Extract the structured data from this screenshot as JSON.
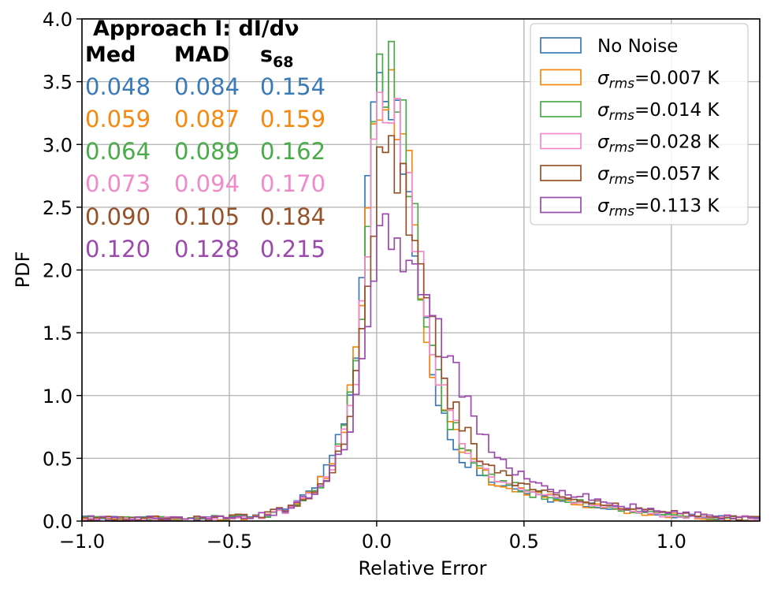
{
  "chart_data": {
    "type": "histogram-step",
    "xlabel": "Relative Error",
    "ylabel": "PDF",
    "xlim": [
      -1.0,
      1.3
    ],
    "ylim": [
      0.0,
      4.0
    ],
    "grid": true,
    "legend_position": "top-right",
    "xticks": [
      "−1.0",
      "−0.5",
      "0.0",
      "0.5",
      "1.0"
    ],
    "xtick_values": [
      -1.0,
      -0.5,
      0.0,
      0.5,
      1.0
    ],
    "yticks": [
      "0.0",
      "0.5",
      "1.0",
      "1.5",
      "2.0",
      "2.5",
      "3.0",
      "3.5",
      "4.0"
    ],
    "ytick_values": [
      0.0,
      0.5,
      1.0,
      1.5,
      2.0,
      2.5,
      3.0,
      3.5,
      4.0
    ],
    "annotation_title": "Approach I: dI/dν",
    "stat_headers": [
      "Med",
      "MAD",
      "s68"
    ],
    "series": [
      {
        "name": "No Noise",
        "color": "#3a7ab8",
        "stats": [
          "0.048",
          "0.084",
          "0.154"
        ],
        "profile": [
          [
            -1.0,
            0.02
          ],
          [
            -0.6,
            0.02
          ],
          [
            -0.4,
            0.03
          ],
          [
            -0.3,
            0.1
          ],
          [
            -0.2,
            0.3
          ],
          [
            -0.15,
            0.5
          ],
          [
            -0.1,
            0.9
          ],
          [
            -0.06,
            1.6
          ],
          [
            -0.03,
            2.6
          ],
          [
            -0.01,
            3.4
          ],
          [
            0.01,
            3.8
          ],
          [
            0.03,
            3.75
          ],
          [
            0.06,
            3.3
          ],
          [
            0.09,
            3.0
          ],
          [
            0.12,
            2.4
          ],
          [
            0.15,
            1.8
          ],
          [
            0.18,
            1.3
          ],
          [
            0.21,
            0.95
          ],
          [
            0.25,
            0.7
          ],
          [
            0.3,
            0.5
          ],
          [
            0.35,
            0.38
          ],
          [
            0.4,
            0.3
          ],
          [
            0.5,
            0.22
          ],
          [
            0.6,
            0.17
          ],
          [
            0.7,
            0.14
          ],
          [
            0.8,
            0.1
          ],
          [
            0.9,
            0.07
          ],
          [
            1.0,
            0.05
          ],
          [
            1.1,
            0.03
          ],
          [
            1.2,
            0.02
          ],
          [
            1.3,
            0.02
          ]
        ]
      },
      {
        "name": "σrms=0.007 K",
        "color": "#f5890f",
        "stats": [
          "0.059",
          "0.087",
          "0.159"
        ],
        "profile": [
          [
            -1.0,
            0.02
          ],
          [
            -0.6,
            0.02
          ],
          [
            -0.4,
            0.03
          ],
          [
            -0.3,
            0.09
          ],
          [
            -0.2,
            0.28
          ],
          [
            -0.15,
            0.45
          ],
          [
            -0.1,
            0.8
          ],
          [
            -0.06,
            1.5
          ],
          [
            -0.03,
            2.4
          ],
          [
            -0.01,
            3.1
          ],
          [
            0.01,
            3.5
          ],
          [
            0.03,
            3.6
          ],
          [
            0.06,
            3.5
          ],
          [
            0.09,
            3.1
          ],
          [
            0.12,
            2.5
          ],
          [
            0.15,
            1.9
          ],
          [
            0.18,
            1.4
          ],
          [
            0.21,
            1.05
          ],
          [
            0.25,
            0.75
          ],
          [
            0.3,
            0.55
          ],
          [
            0.35,
            0.4
          ],
          [
            0.4,
            0.32
          ],
          [
            0.5,
            0.23
          ],
          [
            0.6,
            0.18
          ],
          [
            0.7,
            0.14
          ],
          [
            0.8,
            0.1
          ],
          [
            0.9,
            0.07
          ],
          [
            1.0,
            0.05
          ],
          [
            1.1,
            0.03
          ],
          [
            1.2,
            0.02
          ],
          [
            1.3,
            0.02
          ]
        ]
      },
      {
        "name": "σrms=0.014 K",
        "color": "#4bab4b",
        "stats": [
          "0.064",
          "0.089",
          "0.162"
        ],
        "profile": [
          [
            -1.0,
            0.02
          ],
          [
            -0.6,
            0.02
          ],
          [
            -0.4,
            0.03
          ],
          [
            -0.3,
            0.09
          ],
          [
            -0.2,
            0.27
          ],
          [
            -0.15,
            0.45
          ],
          [
            -0.1,
            0.8
          ],
          [
            -0.06,
            1.45
          ],
          [
            -0.03,
            2.3
          ],
          [
            -0.01,
            3.0
          ],
          [
            0.01,
            3.4
          ],
          [
            0.03,
            3.55
          ],
          [
            0.06,
            3.45
          ],
          [
            0.09,
            3.1
          ],
          [
            0.12,
            2.5
          ],
          [
            0.15,
            1.95
          ],
          [
            0.18,
            1.45
          ],
          [
            0.21,
            1.1
          ],
          [
            0.25,
            0.8
          ],
          [
            0.3,
            0.58
          ],
          [
            0.35,
            0.42
          ],
          [
            0.4,
            0.33
          ],
          [
            0.5,
            0.24
          ],
          [
            0.6,
            0.18
          ],
          [
            0.7,
            0.14
          ],
          [
            0.8,
            0.1
          ],
          [
            0.9,
            0.07
          ],
          [
            1.0,
            0.05
          ],
          [
            1.1,
            0.03
          ],
          [
            1.2,
            0.02
          ],
          [
            1.3,
            0.02
          ]
        ]
      },
      {
        "name": "σrms=0.028 K",
        "color": "#f08ac9",
        "stats": [
          "0.073",
          "0.094",
          "0.170"
        ],
        "profile": [
          [
            -1.0,
            0.02
          ],
          [
            -0.6,
            0.02
          ],
          [
            -0.4,
            0.03
          ],
          [
            -0.3,
            0.09
          ],
          [
            -0.2,
            0.26
          ],
          [
            -0.15,
            0.43
          ],
          [
            -0.1,
            0.75
          ],
          [
            -0.06,
            1.35
          ],
          [
            -0.03,
            2.1
          ],
          [
            -0.01,
            2.8
          ],
          [
            0.01,
            3.2
          ],
          [
            0.03,
            3.35
          ],
          [
            0.06,
            3.3
          ],
          [
            0.09,
            3.0
          ],
          [
            0.12,
            2.5
          ],
          [
            0.15,
            2.0
          ],
          [
            0.18,
            1.5
          ],
          [
            0.21,
            1.15
          ],
          [
            0.25,
            0.85
          ],
          [
            0.3,
            0.62
          ],
          [
            0.35,
            0.45
          ],
          [
            0.4,
            0.35
          ],
          [
            0.5,
            0.25
          ],
          [
            0.6,
            0.19
          ],
          [
            0.7,
            0.15
          ],
          [
            0.8,
            0.11
          ],
          [
            0.9,
            0.08
          ],
          [
            1.0,
            0.05
          ],
          [
            1.1,
            0.04
          ],
          [
            1.2,
            0.03
          ],
          [
            1.3,
            0.02
          ]
        ]
      },
      {
        "name": "σrms=0.057 K",
        "color": "#96522a",
        "stats": [
          "0.090",
          "0.105",
          "0.184"
        ],
        "profile": [
          [
            -1.0,
            0.02
          ],
          [
            -0.6,
            0.02
          ],
          [
            -0.4,
            0.04
          ],
          [
            -0.3,
            0.1
          ],
          [
            -0.2,
            0.25
          ],
          [
            -0.15,
            0.42
          ],
          [
            -0.1,
            0.72
          ],
          [
            -0.06,
            1.25
          ],
          [
            -0.03,
            1.9
          ],
          [
            -0.01,
            2.5
          ],
          [
            0.01,
            2.9
          ],
          [
            0.03,
            3.0
          ],
          [
            0.06,
            2.95
          ],
          [
            0.09,
            2.75
          ],
          [
            0.12,
            2.4
          ],
          [
            0.15,
            2.0
          ],
          [
            0.18,
            1.6
          ],
          [
            0.21,
            1.3
          ],
          [
            0.25,
            1.0
          ],
          [
            0.3,
            0.72
          ],
          [
            0.35,
            0.52
          ],
          [
            0.4,
            0.4
          ],
          [
            0.5,
            0.28
          ],
          [
            0.6,
            0.2
          ],
          [
            0.7,
            0.16
          ],
          [
            0.8,
            0.12
          ],
          [
            0.9,
            0.08
          ],
          [
            1.0,
            0.06
          ],
          [
            1.1,
            0.04
          ],
          [
            1.2,
            0.03
          ],
          [
            1.3,
            0.02
          ]
        ]
      },
      {
        "name": "σrms=0.113 K",
        "color": "#9a4bab",
        "stats": [
          "0.120",
          "0.128",
          "0.215"
        ],
        "profile": [
          [
            -1.0,
            0.02
          ],
          [
            -0.6,
            0.02
          ],
          [
            -0.4,
            0.04
          ],
          [
            -0.3,
            0.1
          ],
          [
            -0.2,
            0.25
          ],
          [
            -0.15,
            0.4
          ],
          [
            -0.1,
            0.65
          ],
          [
            -0.06,
            1.1
          ],
          [
            -0.03,
            1.6
          ],
          [
            -0.01,
            2.05
          ],
          [
            0.01,
            2.35
          ],
          [
            0.03,
            2.45
          ],
          [
            0.06,
            2.35
          ],
          [
            0.09,
            2.2
          ],
          [
            0.12,
            2.05
          ],
          [
            0.15,
            1.85
          ],
          [
            0.18,
            1.65
          ],
          [
            0.21,
            1.5
          ],
          [
            0.25,
            1.3
          ],
          [
            0.3,
            1.0
          ],
          [
            0.35,
            0.75
          ],
          [
            0.4,
            0.55
          ],
          [
            0.5,
            0.35
          ],
          [
            0.6,
            0.25
          ],
          [
            0.7,
            0.19
          ],
          [
            0.8,
            0.14
          ],
          [
            0.9,
            0.1
          ],
          [
            1.0,
            0.07
          ],
          [
            1.1,
            0.05
          ],
          [
            1.2,
            0.03
          ],
          [
            1.3,
            0.03
          ]
        ]
      }
    ]
  }
}
